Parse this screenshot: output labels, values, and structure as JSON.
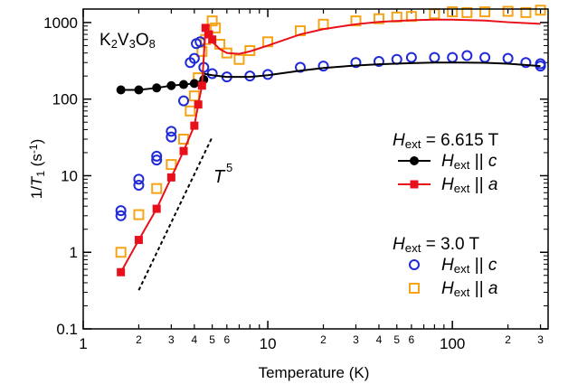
{
  "chart_data": {
    "type": "scatter",
    "xscale": "log",
    "yscale": "log",
    "xlim": [
      1,
      330
    ],
    "ylim": [
      0.1,
      1500
    ],
    "xlabel": "Temperature (K)",
    "ylabel": "1/T₁ (s⁻¹)",
    "x_major_ticks": [
      1,
      10,
      100
    ],
    "x_major_labels": [
      "1",
      "10",
      "100"
    ],
    "x_minor_ticks": [
      2,
      3,
      4,
      5,
      6,
      20,
      30,
      40,
      50,
      60,
      200,
      300
    ],
    "x_minor_labels": [
      "2",
      "3",
      "4",
      "5",
      "6",
      "2",
      "3",
      "4",
      "5",
      "6",
      "2",
      "3"
    ],
    "y_major_ticks": [
      0.1,
      1,
      10,
      100,
      1000
    ],
    "y_major_labels": [
      "0.1",
      "1",
      "10",
      "100",
      "1000"
    ],
    "compound_label": "K2V3O8",
    "legend": {
      "position": "right",
      "group1_title": "Hext = 6.615 T",
      "group2_title": "Hext = 3.0 T",
      "entries": [
        {
          "label": "Hext || c",
          "group": 1,
          "color": "#000000",
          "marker": "filled-circle"
        },
        {
          "label": "Hext || a",
          "group": 1,
          "color": "#e8101a",
          "marker": "filled-square"
        },
        {
          "label": "Hext || c",
          "group": 2,
          "color": "#1f2ad6",
          "marker": "open-circle"
        },
        {
          "label": "Hext || a",
          "group": 2,
          "color": "#f5a418",
          "marker": "open-square"
        }
      ]
    },
    "annotation": {
      "text": "T",
      "superscript": "5",
      "line": {
        "x": [
          2.0,
          5.0
        ],
        "y": [
          0.32,
          32
        ]
      }
    },
    "series": [
      {
        "name": "Hext || c, 6.615 T",
        "color": "#000000",
        "marker": "filled-circle",
        "line": true,
        "x": [
          1.6,
          2.0,
          2.5,
          3.0,
          3.5,
          4.0,
          4.5
        ],
        "y": [
          132,
          132,
          140,
          150,
          155,
          160,
          180
        ]
      },
      {
        "name": "Hext || a, 6.615 T",
        "color": "#e8101a",
        "marker": "filled-square",
        "line": true,
        "x": [
          1.6,
          2.0,
          2.5,
          3.0,
          3.5,
          4.0,
          4.2,
          4.4,
          4.6,
          4.8,
          5.0
        ],
        "y": [
          0.55,
          1.45,
          3.7,
          9.5,
          21,
          45,
          85,
          150,
          850,
          700,
          600
        ]
      },
      {
        "name": "Hext || c, 3.0 T",
        "color": "#1f2ad6",
        "marker": "open-circle",
        "line": false,
        "x": [
          1.6,
          1.6,
          2.0,
          2.0,
          2.5,
          2.5,
          3.0,
          3.0,
          3.5,
          3.8,
          4.0,
          4.1,
          4.3,
          4.5,
          5.0,
          6.0,
          8.0,
          10,
          15,
          20,
          30,
          40,
          50,
          60,
          80,
          100,
          120,
          150,
          200,
          250,
          300,
          300
        ],
        "y": [
          3.0,
          3.5,
          7.5,
          9.0,
          16,
          18,
          32,
          38,
          95,
          300,
          340,
          530,
          560,
          260,
          215,
          195,
          200,
          210,
          260,
          270,
          300,
          310,
          330,
          350,
          350,
          350,
          370,
          350,
          340,
          300,
          270,
          290
        ]
      },
      {
        "name": "Hext || a, 3.0 T",
        "color": "#f5a418",
        "marker": "open-square",
        "line": false,
        "x": [
          1.6,
          2.0,
          2.5,
          3.0,
          3.5,
          3.8,
          4.0,
          4.2,
          4.4,
          4.6,
          5.0,
          5.2,
          5.5,
          6.0,
          7.0,
          8.0,
          10,
          15,
          20,
          30,
          40,
          50,
          60,
          80,
          100,
          120,
          150,
          200,
          250,
          300
        ],
        "y": [
          1.0,
          3.1,
          6.8,
          14,
          30,
          70,
          110,
          190,
          420,
          600,
          1050,
          850,
          520,
          400,
          330,
          430,
          560,
          780,
          950,
          1050,
          1120,
          1180,
          1200,
          1300,
          1380,
          1350,
          1380,
          1400,
          1350,
          1450
        ]
      },
      {
        "name": "fit a",
        "color": "#e8101a",
        "marker": "none",
        "line": true,
        "x": [
          5.0,
          5.5,
          6.0,
          7.0,
          8.0,
          10,
          15,
          20,
          30,
          40,
          60,
          80,
          100,
          150,
          200,
          300
        ],
        "y": [
          560,
          450,
          400,
          390,
          420,
          500,
          700,
          820,
          950,
          1020,
          1070,
          1090,
          1090,
          1060,
          1010,
          960
        ]
      },
      {
        "name": "fit c",
        "color": "#000000",
        "marker": "none",
        "line": true,
        "x": [
          4.5,
          5.0,
          6.0,
          8.0,
          10,
          15,
          20,
          30,
          40,
          60,
          80,
          100,
          150,
          200,
          300
        ],
        "y": [
          215,
          205,
          195,
          195,
          205,
          235,
          255,
          275,
          285,
          295,
          300,
          300,
          298,
          290,
          270
        ]
      }
    ]
  }
}
